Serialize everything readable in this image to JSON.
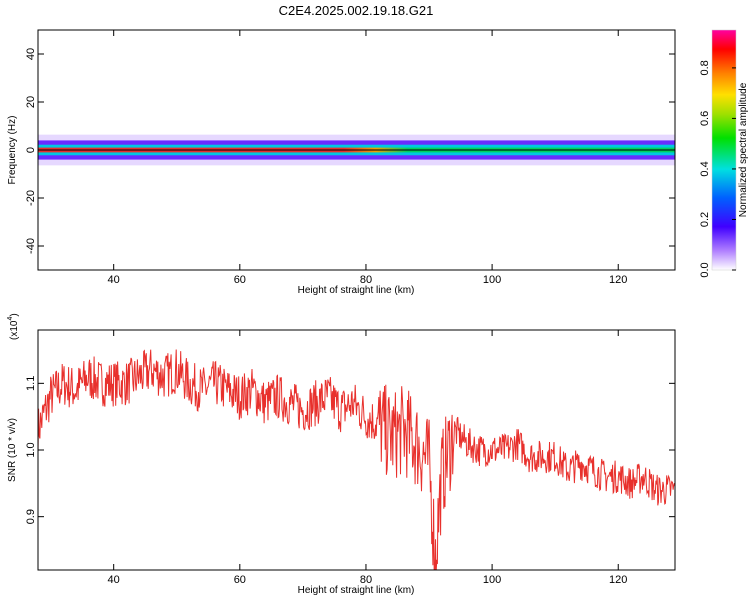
{
  "title": "C2E4.2025.002.19.18.G21",
  "colors": {
    "trace": "#e8302c",
    "axis": "#000000",
    "background": "#ffffff"
  },
  "chart_data": [
    {
      "type": "heatmap",
      "xlabel": "Height of straight line (km)",
      "ylabel": "Frequency (Hz)",
      "xlim": [
        28,
        129
      ],
      "ylim": [
        -50,
        50
      ],
      "xticks": [
        40,
        60,
        80,
        100,
        120
      ],
      "xtick_labels": [
        "40",
        "60",
        "80",
        "100",
        "120"
      ],
      "yticks": [
        40,
        20,
        0,
        -20,
        -40
      ],
      "ytick_labels": [
        "40",
        "20",
        "0",
        "-20",
        "-40"
      ],
      "description_values": {
        "band_center_hz": 0,
        "band_halfwidth_hz": [
          -4,
          4
        ],
        "x_start_km": 28,
        "x_end_km": 129
      },
      "colorbar": {
        "label": "Normalized spectral amplitude",
        "range": [
          0,
          0.95
        ],
        "ticks": [
          0.0,
          0.2,
          0.4,
          0.6,
          0.8
        ],
        "tick_labels": [
          "0.0",
          "0.2",
          "0.4",
          "0.6",
          "0.8"
        ]
      },
      "grid": false
    },
    {
      "type": "line",
      "xlabel": "Height of straight line (km)",
      "ylabel": "SNR (10 * v/v)",
      "y_multiplier_label": "(x10",
      "y_multiplier_exp": "4",
      "xlim": [
        28,
        129
      ],
      "ylim": [
        0.82,
        1.18
      ],
      "xticks": [
        40,
        60,
        80,
        100,
        120
      ],
      "xtick_labels": [
        "40",
        "60",
        "80",
        "100",
        "120"
      ],
      "yticks": [
        1.1,
        1.0,
        0.9
      ],
      "ytick_labels": [
        "1.1",
        "1.0",
        "0.9"
      ],
      "grid": false,
      "series": [
        {
          "x": [
            28,
            30,
            32,
            34,
            36,
            38,
            40,
            42,
            44,
            46,
            48,
            50,
            52,
            54,
            56,
            58,
            60,
            62,
            64,
            66,
            68,
            70,
            72,
            74,
            76,
            78,
            80,
            82,
            84,
            86,
            88,
            90,
            91,
            92,
            94,
            96,
            98,
            100,
            102,
            104,
            106,
            108,
            110,
            112,
            114,
            116,
            118,
            120,
            122,
            124,
            126,
            128,
            129
          ],
          "y": [
            1.03,
            1.08,
            1.1,
            1.09,
            1.11,
            1.1,
            1.1,
            1.1,
            1.11,
            1.12,
            1.11,
            1.12,
            1.1,
            1.09,
            1.1,
            1.09,
            1.08,
            1.09,
            1.07,
            1.08,
            1.07,
            1.06,
            1.07,
            1.08,
            1.06,
            1.07,
            1.05,
            1.04,
            1.02,
            1.03,
            1.01,
            0.98,
            0.84,
            0.96,
            1.03,
            1.01,
            1.0,
            1.0,
            1.0,
            1.01,
            0.99,
            0.99,
            0.99,
            0.97,
            0.98,
            0.97,
            0.96,
            0.96,
            0.95,
            0.96,
            0.94,
            0.94,
            0.94
          ]
        }
      ]
    }
  ]
}
